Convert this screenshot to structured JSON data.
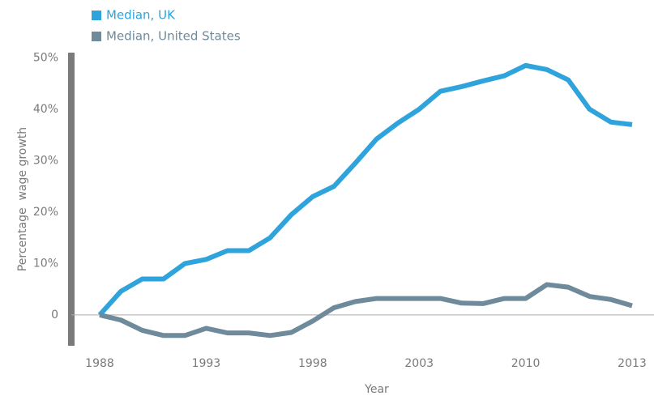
{
  "chart_data": {
    "type": "line",
    "y_label": "Percentage  wage growth",
    "x_label": "Year",
    "categories": [
      "1988",
      null,
      null,
      null,
      null,
      "1993",
      null,
      null,
      null,
      null,
      "1998",
      null,
      null,
      null,
      null,
      "2003",
      null,
      null,
      null,
      null,
      "2010",
      null,
      null,
      null,
      null,
      "2013"
    ],
    "series": [
      {
        "name": "Median, UK",
        "color": "#2ea3dc",
        "values": [
          0,
          4.6,
          7,
          7,
          10,
          10.8,
          12.5,
          12.5,
          15,
          19.5,
          23,
          25,
          29.5,
          34.2,
          37.3,
          40,
          43.5,
          44.4,
          45.5,
          46.5,
          48.5,
          47.7,
          45.7,
          40,
          37.5,
          37
        ]
      },
      {
        "name": "Median, United States",
        "color": "#6f8a9a",
        "values": [
          0,
          -1,
          -3,
          -4,
          -4,
          -2.6,
          -3.5,
          -3.5,
          -4,
          -3.4,
          -1.2,
          1.4,
          2.6,
          3.2,
          3.2,
          3.2,
          3.2,
          2.3,
          2.2,
          3.2,
          3.2,
          5.9,
          5.4,
          3.6,
          3.0,
          1.8
        ]
      }
    ],
    "ylim": [
      -6,
      51
    ],
    "yticks": [
      0,
      {
        "value": 10,
        "label": "10%"
      },
      {
        "value": 20,
        "label": "20%"
      },
      {
        "value": 30,
        "label": "30%"
      },
      {
        "value": 40,
        "label": "40%"
      },
      {
        "value": 50,
        "label": "50%"
      }
    ],
    "legend": "top-left"
  }
}
